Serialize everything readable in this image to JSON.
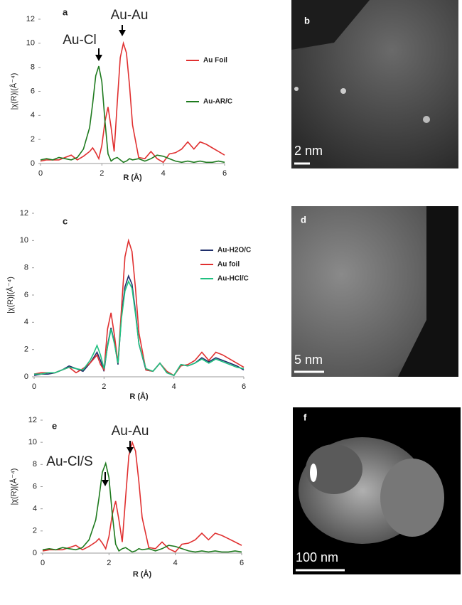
{
  "chart_data": [
    {
      "type": "line",
      "panel_label": "a",
      "x_label": "R (Å)",
      "y_label": "|χ(R)|(Å⁻⁴)",
      "xlim": [
        0,
        6
      ],
      "ylim": [
        0,
        12
      ],
      "xticks": [
        0,
        2,
        4,
        6
      ],
      "yticks": [
        0,
        2,
        4,
        6,
        8,
        10,
        12
      ],
      "legend": "right",
      "annotations": [
        "Au-Au",
        "Au-Cl"
      ],
      "x": [
        0,
        0.2,
        0.4,
        0.6,
        0.8,
        1.0,
        1.2,
        1.4,
        1.6,
        1.7,
        1.8,
        1.9,
        2.0,
        2.1,
        2.2,
        2.3,
        2.4,
        2.5,
        2.6,
        2.7,
        2.8,
        2.9,
        3.0,
        3.2,
        3.4,
        3.6,
        3.8,
        4.0,
        4.2,
        4.4,
        4.6,
        4.8,
        5.0,
        5.2,
        5.4,
        5.6,
        5.8,
        6.0
      ],
      "series": [
        {
          "name": "Au Foil",
          "color": "#e03030",
          "values": [
            0.2,
            0.3,
            0.3,
            0.3,
            0.5,
            0.7,
            0.3,
            0.6,
            1.0,
            1.3,
            0.9,
            0.4,
            1.5,
            3.5,
            4.7,
            3.0,
            1.0,
            5.0,
            8.8,
            10.0,
            9.2,
            6.5,
            3.2,
            0.5,
            0.4,
            1.0,
            0.4,
            0.1,
            0.8,
            0.9,
            1.2,
            1.8,
            1.2,
            1.8,
            1.6,
            1.3,
            1.0,
            0.7
          ]
        },
        {
          "name": "Au-AR/C",
          "color": "#1e7a1e",
          "values": [
            0.3,
            0.4,
            0.3,
            0.5,
            0.4,
            0.3,
            0.5,
            1.2,
            3.0,
            5.0,
            7.3,
            8.1,
            6.8,
            3.5,
            0.8,
            0.2,
            0.4,
            0.5,
            0.3,
            0.1,
            0.2,
            0.4,
            0.3,
            0.4,
            0.2,
            0.4,
            0.7,
            0.6,
            0.4,
            0.2,
            0.1,
            0.2,
            0.1,
            0.2,
            0.1,
            0.1,
            0.2,
            0.1
          ]
        }
      ]
    },
    {
      "type": "line",
      "panel_label": "c",
      "x_label": "R (Å)",
      "y_label": "|χ(R)|(Å⁻⁴)",
      "xlim": [
        0,
        6
      ],
      "ylim": [
        0,
        12
      ],
      "xticks": [
        0,
        2,
        4,
        6
      ],
      "yticks": [
        0,
        2,
        4,
        6,
        8,
        10,
        12
      ],
      "legend": "right",
      "x": [
        0,
        0.2,
        0.4,
        0.6,
        0.8,
        1.0,
        1.2,
        1.4,
        1.6,
        1.7,
        1.8,
        1.9,
        2.0,
        2.1,
        2.2,
        2.3,
        2.4,
        2.5,
        2.6,
        2.7,
        2.8,
        2.9,
        3.0,
        3.2,
        3.4,
        3.6,
        3.8,
        4.0,
        4.2,
        4.4,
        4.6,
        4.8,
        5.0,
        5.2,
        5.4,
        5.6,
        5.8,
        6.0
      ],
      "series": [
        {
          "name": "Au-H2O/C",
          "color": "#1f2f6b",
          "values": [
            0.1,
            0.2,
            0.2,
            0.3,
            0.5,
            0.8,
            0.6,
            0.4,
            1.0,
            1.4,
            1.8,
            1.2,
            0.4,
            2.3,
            3.6,
            2.5,
            0.9,
            4.5,
            6.6,
            7.4,
            6.8,
            4.8,
            2.4,
            0.5,
            0.4,
            1.0,
            0.3,
            0.1,
            0.9,
            0.8,
            1.0,
            1.4,
            1.1,
            1.4,
            1.2,
            1.0,
            0.8,
            0.5
          ]
        },
        {
          "name": "Au foil",
          "color": "#e03030",
          "values": [
            0.2,
            0.3,
            0.3,
            0.3,
            0.5,
            0.7,
            0.3,
            0.6,
            1.0,
            1.3,
            1.6,
            0.9,
            0.5,
            3.5,
            4.7,
            3.0,
            1.0,
            5.0,
            8.8,
            10.0,
            9.2,
            6.5,
            3.2,
            0.5,
            0.4,
            1.0,
            0.4,
            0.1,
            0.8,
            0.9,
            1.2,
            1.8,
            1.2,
            1.8,
            1.6,
            1.3,
            1.0,
            0.7
          ]
        },
        {
          "name": "Au-HCl/C",
          "color": "#20c080",
          "values": [
            0.2,
            0.2,
            0.3,
            0.3,
            0.5,
            0.7,
            0.6,
            0.5,
            1.2,
            1.7,
            2.3,
            1.6,
            0.6,
            2.2,
            3.5,
            2.4,
            1.0,
            4.3,
            6.3,
            7.0,
            6.5,
            4.6,
            2.4,
            0.6,
            0.4,
            1.0,
            0.3,
            0.1,
            0.9,
            0.8,
            1.0,
            1.3,
            1.0,
            1.3,
            1.1,
            0.9,
            0.7,
            0.6
          ]
        }
      ]
    },
    {
      "type": "line",
      "panel_label": "e",
      "x_label": "R (Å)",
      "y_label": "|χ(R)|(Å⁻⁴)",
      "xlim": [
        0,
        6
      ],
      "ylim": [
        0,
        12
      ],
      "xticks": [
        0,
        2,
        4,
        6
      ],
      "yticks": [
        0,
        2,
        4,
        6,
        8,
        10,
        12
      ],
      "annotations": [
        "Au-Au",
        "Au-Cl/S"
      ],
      "x": [
        0,
        0.2,
        0.4,
        0.6,
        0.8,
        1.0,
        1.2,
        1.4,
        1.6,
        1.7,
        1.8,
        1.9,
        2.0,
        2.1,
        2.2,
        2.3,
        2.4,
        2.5,
        2.6,
        2.7,
        2.8,
        2.9,
        3.0,
        3.2,
        3.4,
        3.6,
        3.8,
        4.0,
        4.2,
        4.4,
        4.6,
        4.8,
        5.0,
        5.2,
        5.4,
        5.6,
        5.8,
        6.0
      ],
      "series": [
        {
          "color": "#e03030",
          "values": [
            0.2,
            0.3,
            0.3,
            0.3,
            0.5,
            0.7,
            0.3,
            0.6,
            1.0,
            1.3,
            0.9,
            0.4,
            1.5,
            3.5,
            4.7,
            3.0,
            1.0,
            5.0,
            8.8,
            10.0,
            9.2,
            6.5,
            3.2,
            0.5,
            0.4,
            1.0,
            0.4,
            0.1,
            0.8,
            0.9,
            1.2,
            1.8,
            1.2,
            1.8,
            1.6,
            1.3,
            1.0,
            0.7
          ]
        },
        {
          "color": "#1e7a1e",
          "values": [
            0.3,
            0.4,
            0.3,
            0.5,
            0.4,
            0.3,
            0.5,
            1.2,
            3.0,
            5.0,
            7.3,
            8.1,
            6.8,
            3.5,
            0.8,
            0.2,
            0.4,
            0.5,
            0.3,
            0.1,
            0.2,
            0.4,
            0.3,
            0.4,
            0.2,
            0.4,
            0.7,
            0.6,
            0.4,
            0.2,
            0.1,
            0.2,
            0.1,
            0.2,
            0.1,
            0.1,
            0.2,
            0.1
          ]
        }
      ]
    }
  ],
  "images": [
    {
      "panel_label": "b",
      "scale_bar": "2 nm"
    },
    {
      "panel_label": "d",
      "scale_bar": "5 nm"
    },
    {
      "panel_label": "f",
      "scale_bar": "100 nm"
    }
  ]
}
